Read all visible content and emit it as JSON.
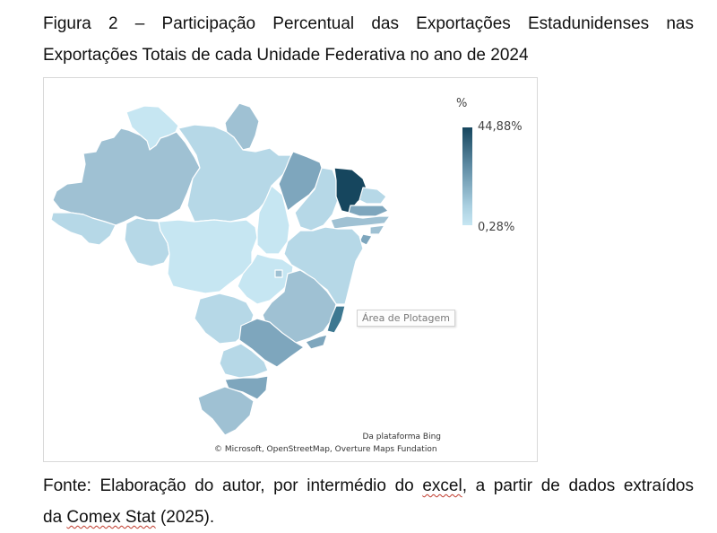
{
  "caption": {
    "line1": "Figura 2 – Participação Percentual das Exportações Estadunidenses nas",
    "line2": "Exportações Totais de cada Unidade Federativa no ano de 2024"
  },
  "source": {
    "prefix": "Fonte: Elaboração do autor, por intermédio do ",
    "excel": "excel",
    "middle": ", a partir de dados extraídos",
    "line2_prefix": "da ",
    "comex": "Comex Stat",
    "line2_suffix": " (2025)."
  },
  "legend": {
    "unit": "%",
    "max_label": "44,88%",
    "min_label": "0,28%"
  },
  "tooltip": "Área de Plotagem",
  "attribution": {
    "bing": "Da plataforma Bing",
    "osm": "© Microsoft, OpenStreetMap, Overture Maps Fundation"
  },
  "colors": {
    "max": "#16465e",
    "high": "#3d7891",
    "mid": "#7ea6bd",
    "midlow": "#9fc1d3",
    "low": "#b6d8e7",
    "min": "#c6e6f2"
  }
}
